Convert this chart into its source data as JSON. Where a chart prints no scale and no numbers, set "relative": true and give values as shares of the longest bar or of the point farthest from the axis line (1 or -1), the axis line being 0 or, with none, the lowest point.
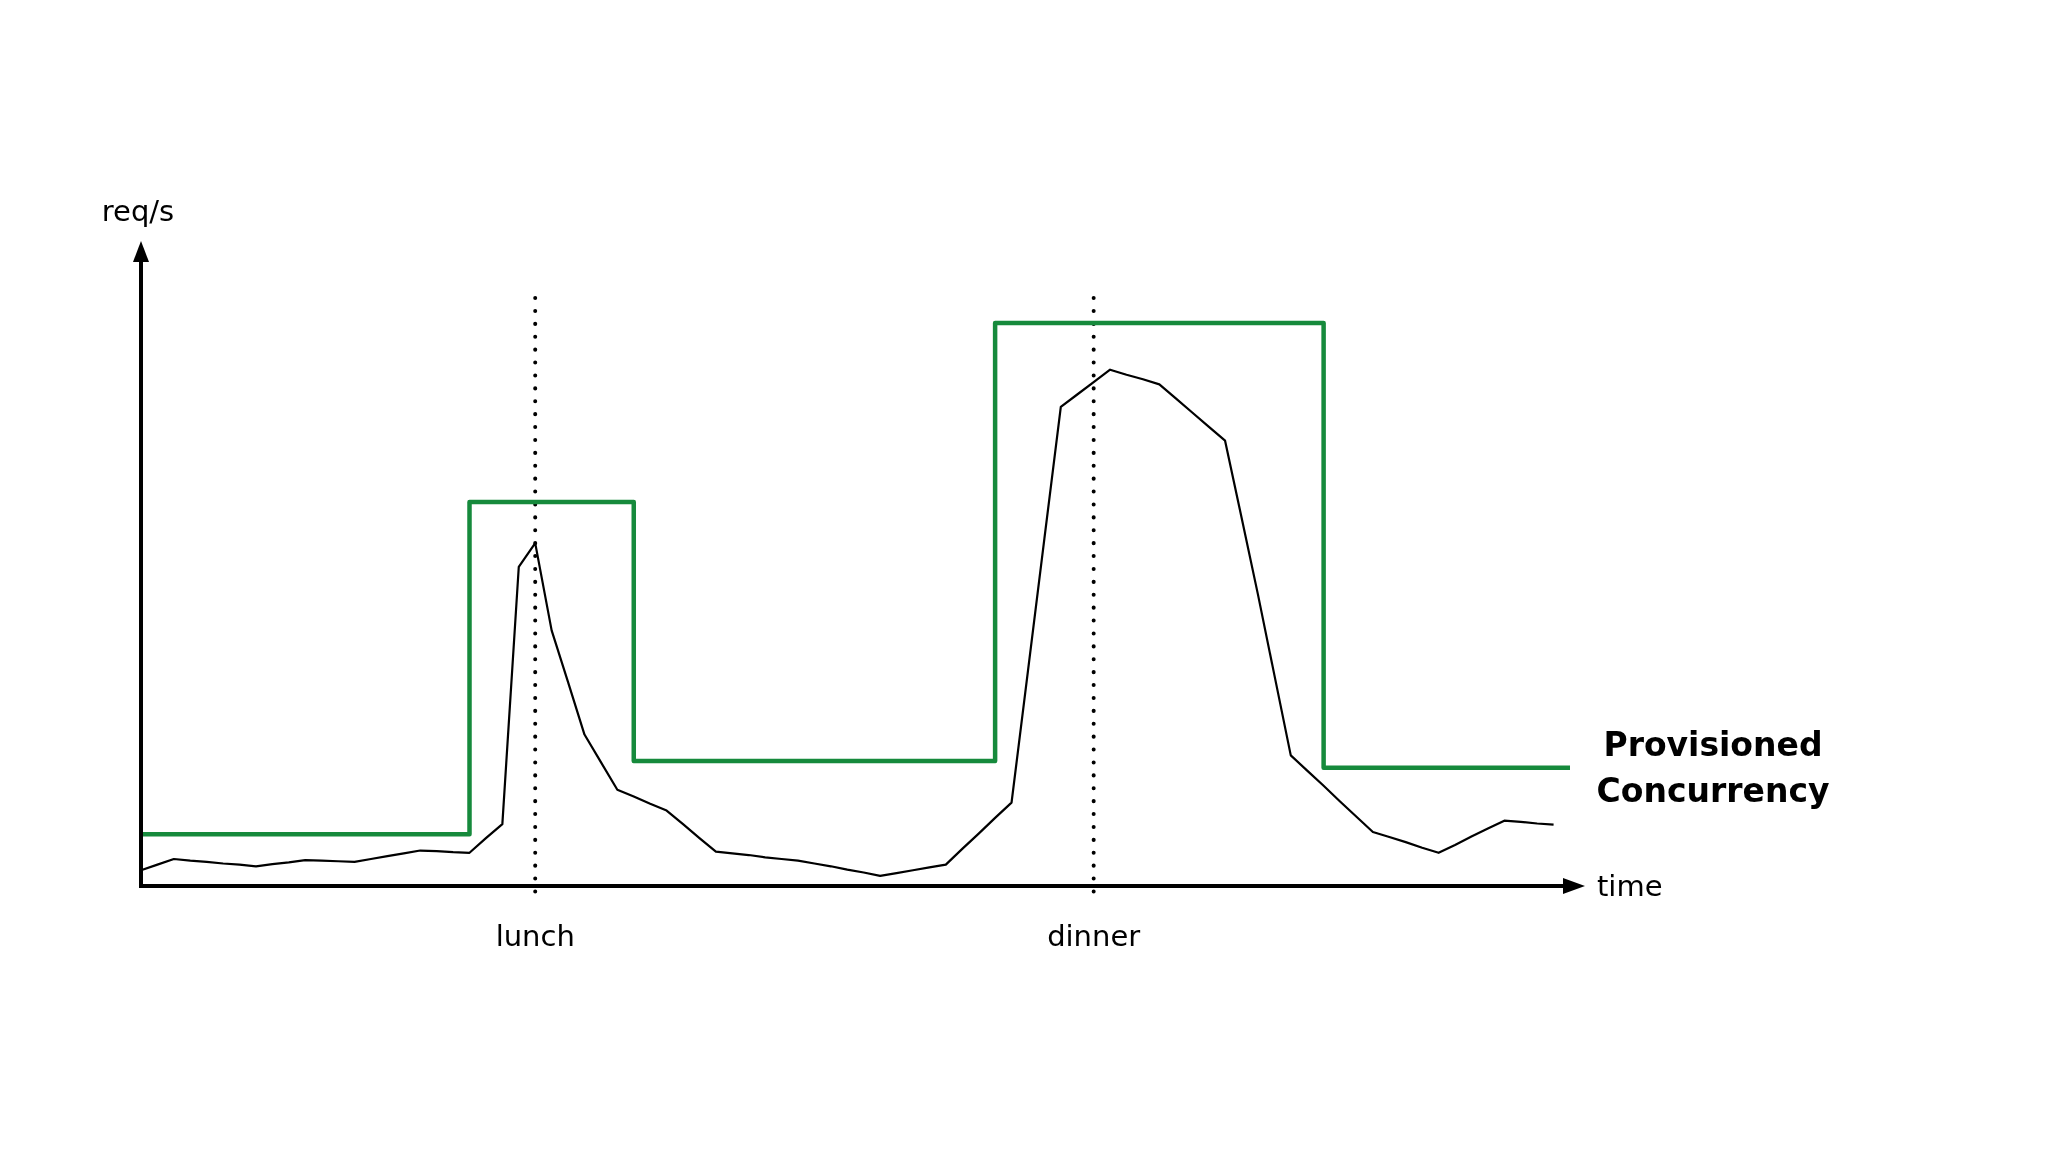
{
  "chart_data": {
    "type": "line",
    "relative": true,
    "xlabel": "time",
    "ylabel": "req/s",
    "tick_labels": "x",
    "categories": [
      null,
      null,
      null,
      null,
      null,
      null,
      null,
      null,
      null,
      null,
      null,
      null,
      null,
      null,
      null,
      null,
      null,
      null,
      null,
      null,
      null,
      null,
      null,
      null,
      "lunch",
      null,
      null,
      null,
      null,
      null,
      null,
      null,
      null,
      null,
      null,
      null,
      null,
      null,
      null,
      null,
      null,
      null,
      null,
      null,
      null,
      null,
      null,
      null,
      null,
      null,
      null,
      null,
      null,
      null,
      null,
      null,
      null,
      null,
      "dinner",
      null,
      null,
      null,
      null,
      null,
      null,
      null,
      null,
      null,
      null,
      null,
      null,
      null,
      null,
      null,
      null,
      null,
      null,
      null,
      null,
      null,
      null,
      null,
      null,
      null,
      null,
      null,
      null,
      null
    ],
    "series": [
      {
        "color": "#000000",
        "values": [
          0.028,
          0.038,
          0.048,
          0.045,
          0.043,
          0.04,
          0.038,
          0.035,
          0.039,
          0.042,
          0.046,
          0.045,
          0.044,
          0.043,
          0.048,
          0.053,
          0.058,
          0.063,
          0.062,
          0.06,
          0.059,
          0.085,
          0.11,
          0.567,
          0.609,
          0.454,
          0.362,
          0.269,
          0.22,
          0.171,
          0.159,
          0.146,
          0.134,
          0.11,
          0.085,
          0.061,
          0.058,
          0.055,
          0.051,
          0.048,
          0.045,
          0.04,
          0.035,
          0.029,
          0.024,
          0.018,
          0.023,
          0.028,
          0.033,
          0.038,
          0.066,
          0.093,
          0.121,
          0.148,
          0.382,
          0.617,
          0.851,
          0.873,
          0.895,
          0.917,
          0.908,
          0.9,
          0.891,
          0.866,
          0.841,
          0.816,
          0.791,
          0.655,
          0.518,
          0.375,
          0.232,
          0.205,
          0.178,
          0.15,
          0.123,
          0.096,
          0.087,
          0.078,
          0.068,
          0.059,
          0.073,
          0.088,
          0.102,
          0.116,
          0.114,
          0.111,
          0.109,
          null
        ]
      },
      {
        "type": "step",
        "name": "Provisioned Concurrency",
        "color": "#168a3c",
        "values": [
          0.092,
          0.092,
          0.092,
          0.092,
          0.092,
          0.092,
          0.092,
          0.092,
          0.092,
          0.092,
          0.092,
          0.092,
          0.092,
          0.092,
          0.092,
          0.092,
          0.092,
          0.092,
          0.092,
          0.092,
          0.682,
          0.682,
          0.682,
          0.682,
          0.682,
          0.682,
          0.682,
          0.682,
          0.682,
          0.682,
          0.222,
          0.222,
          0.222,
          0.222,
          0.222,
          0.222,
          0.222,
          0.222,
          0.222,
          0.222,
          0.222,
          0.222,
          0.222,
          0.222,
          0.222,
          0.222,
          0.222,
          0.222,
          0.222,
          0.222,
          0.222,
          0.222,
          1,
          1,
          1,
          1,
          1,
          1,
          1,
          1,
          1,
          1,
          1,
          1,
          1,
          1,
          1,
          1,
          1,
          1,
          1,
          1,
          0.21,
          0.21,
          0.21,
          0.21,
          0.21,
          0.21,
          0.21,
          0.21,
          0.21,
          0.21,
          0.21,
          0.21,
          0.21,
          0.21,
          0.21,
          0.21
        ]
      }
    ],
    "ref_lines": [
      {
        "axis": "x",
        "value": "lunch",
        "color": "#000000",
        "line_style": "dotted"
      },
      {
        "axis": "x",
        "value": "dinner",
        "color": "#000000",
        "line_style": "dotted"
      }
    ]
  }
}
